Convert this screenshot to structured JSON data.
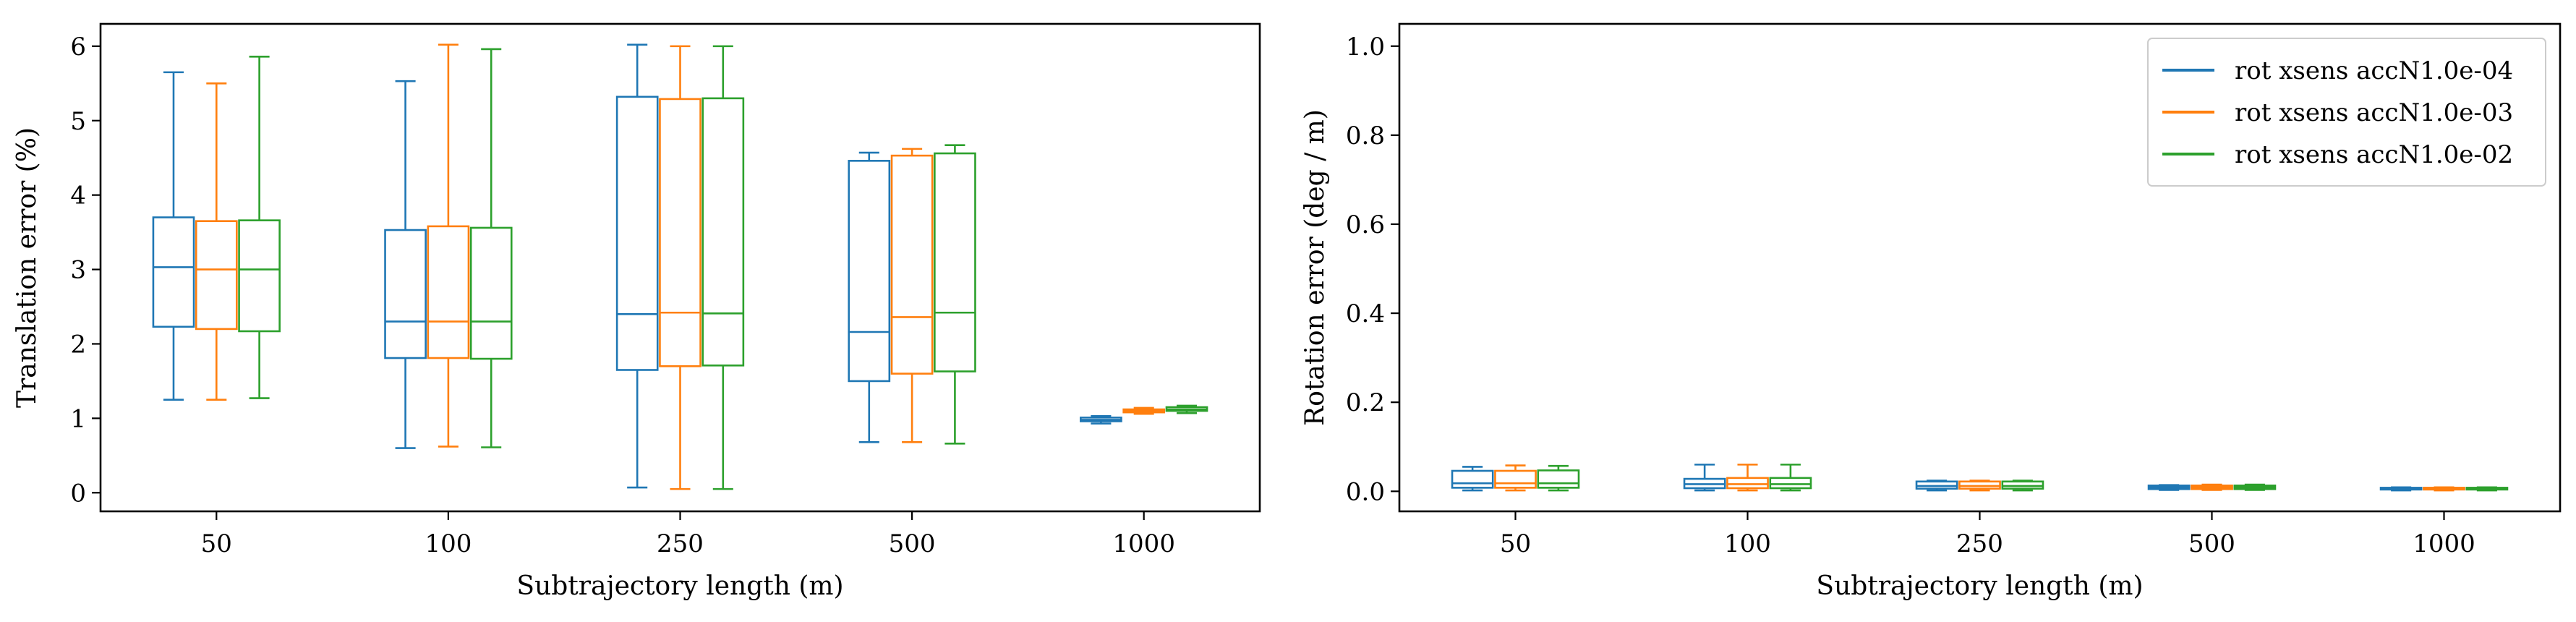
{
  "chart_data": [
    {
      "type": "box",
      "xlabel": "Subtrajectory length (m)",
      "ylabel": "Translation error (%)",
      "categories": [
        "50",
        "100",
        "250",
        "500",
        "1000"
      ],
      "ylim": [
        -0.25,
        6.3
      ],
      "yticks": [
        0,
        1,
        2,
        3,
        4,
        5,
        6
      ],
      "grid": false,
      "series": [
        {
          "color": "#1f77b4",
          "boxes": [
            {
              "whislo": 1.25,
              "q1": 2.23,
              "med": 3.03,
              "q3": 3.7,
              "whishi": 5.65
            },
            {
              "whislo": 0.6,
              "q1": 1.81,
              "med": 2.3,
              "q3": 3.53,
              "whishi": 5.53
            },
            {
              "whislo": 0.07,
              "q1": 1.65,
              "med": 2.4,
              "q3": 5.32,
              "whishi": 6.02
            },
            {
              "whislo": 0.68,
              "q1": 1.5,
              "med": 2.16,
              "q3": 4.46,
              "whishi": 4.57
            },
            {
              "whislo": 0.93,
              "q1": 0.96,
              "med": 0.98,
              "q3": 1.01,
              "whishi": 1.03
            }
          ]
        },
        {
          "color": "#ff7f0e",
          "boxes": [
            {
              "whislo": 1.25,
              "q1": 2.2,
              "med": 3.0,
              "q3": 3.65,
              "whishi": 5.5
            },
            {
              "whislo": 0.62,
              "q1": 1.81,
              "med": 2.3,
              "q3": 3.58,
              "whishi": 6.02
            },
            {
              "whislo": 0.05,
              "q1": 1.7,
              "med": 2.42,
              "q3": 5.29,
              "whishi": 6.0
            },
            {
              "whislo": 0.68,
              "q1": 1.6,
              "med": 2.36,
              "q3": 4.53,
              "whishi": 4.62
            },
            {
              "whislo": 1.06,
              "q1": 1.08,
              "med": 1.1,
              "q3": 1.12,
              "whishi": 1.14
            }
          ]
        },
        {
          "color": "#2ca02c",
          "boxes": [
            {
              "whislo": 1.27,
              "q1": 2.17,
              "med": 3.0,
              "q3": 3.66,
              "whishi": 5.86
            },
            {
              "whislo": 0.61,
              "q1": 1.8,
              "med": 2.3,
              "q3": 3.56,
              "whishi": 5.96
            },
            {
              "whislo": 0.05,
              "q1": 1.71,
              "med": 2.41,
              "q3": 5.3,
              "whishi": 6.0
            },
            {
              "whislo": 0.66,
              "q1": 1.63,
              "med": 2.42,
              "q3": 4.56,
              "whishi": 4.67
            },
            {
              "whislo": 1.07,
              "q1": 1.1,
              "med": 1.12,
              "q3": 1.15,
              "whishi": 1.17
            }
          ]
        }
      ]
    },
    {
      "type": "box",
      "xlabel": "Subtrajectory length (m)",
      "ylabel": "Rotation error (deg / m)",
      "categories": [
        "50",
        "100",
        "250",
        "500",
        "1000"
      ],
      "ylim": [
        -0.045,
        1.05
      ],
      "yticks": [
        "0.0",
        "0.2",
        "0.4",
        "0.6",
        "0.8",
        "1.0"
      ],
      "grid": false,
      "legend": {
        "location": "upper right",
        "entries": [
          {
            "label": "rot xsens accN1.0e-04",
            "color": "#1f77b4"
          },
          {
            "label": "rot xsens accN1.0e-03",
            "color": "#ff7f0e"
          },
          {
            "label": "rot xsens accN1.0e-02",
            "color": "#2ca02c"
          }
        ]
      },
      "series": [
        {
          "name": "rot xsens accN1.0e-04",
          "color": "#1f77b4",
          "boxes": [
            {
              "whislo": 0.002,
              "q1": 0.008,
              "med": 0.018,
              "q3": 0.046,
              "whishi": 0.055
            },
            {
              "whislo": 0.002,
              "q1": 0.007,
              "med": 0.016,
              "q3": 0.028,
              "whishi": 0.06
            },
            {
              "whislo": 0.002,
              "q1": 0.006,
              "med": 0.012,
              "q3": 0.022,
              "whishi": 0.024
            },
            {
              "whislo": 0.003,
              "q1": 0.005,
              "med": 0.009,
              "q3": 0.013,
              "whishi": 0.014
            },
            {
              "whislo": 0.002,
              "q1": 0.004,
              "med": 0.006,
              "q3": 0.008,
              "whishi": 0.009
            }
          ]
        },
        {
          "name": "rot xsens accN1.0e-03",
          "color": "#ff7f0e",
          "boxes": [
            {
              "whislo": 0.002,
              "q1": 0.008,
              "med": 0.018,
              "q3": 0.046,
              "whishi": 0.058
            },
            {
              "whislo": 0.002,
              "q1": 0.007,
              "med": 0.016,
              "q3": 0.03,
              "whishi": 0.06
            },
            {
              "whislo": 0.002,
              "q1": 0.006,
              "med": 0.012,
              "q3": 0.022,
              "whishi": 0.024
            },
            {
              "whislo": 0.003,
              "q1": 0.005,
              "med": 0.009,
              "q3": 0.013,
              "whishi": 0.015
            },
            {
              "whislo": 0.002,
              "q1": 0.004,
              "med": 0.006,
              "q3": 0.008,
              "whishi": 0.009
            }
          ]
        },
        {
          "name": "rot xsens accN1.0e-02",
          "color": "#2ca02c",
          "boxes": [
            {
              "whislo": 0.002,
              "q1": 0.008,
              "med": 0.018,
              "q3": 0.047,
              "whishi": 0.057
            },
            {
              "whislo": 0.002,
              "q1": 0.007,
              "med": 0.016,
              "q3": 0.03,
              "whishi": 0.06
            },
            {
              "whislo": 0.002,
              "q1": 0.006,
              "med": 0.012,
              "q3": 0.022,
              "whishi": 0.024
            },
            {
              "whislo": 0.003,
              "q1": 0.005,
              "med": 0.009,
              "q3": 0.013,
              "whishi": 0.015
            },
            {
              "whislo": 0.002,
              "q1": 0.004,
              "med": 0.006,
              "q3": 0.008,
              "whishi": 0.009
            }
          ]
        }
      ]
    }
  ]
}
